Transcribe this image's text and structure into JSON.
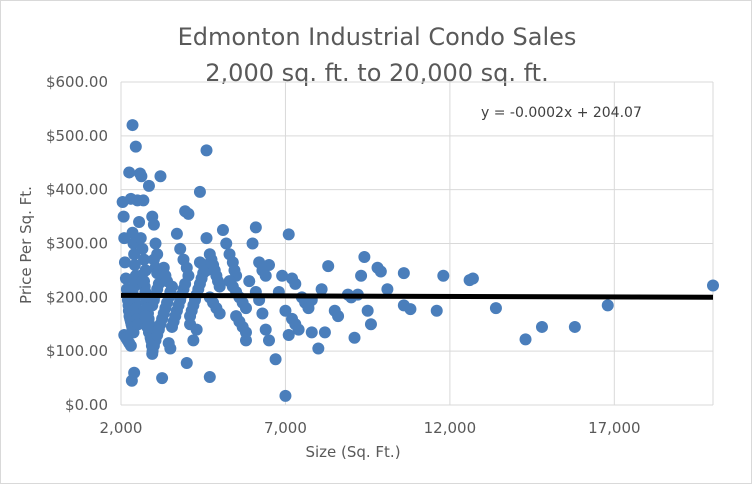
{
  "chart_data": {
    "type": "scatter",
    "title": "Edmonton Industrial Condo Sales",
    "subtitle": "2,000 sq. ft. to 20,000 sq. ft.",
    "xlabel": "Size (Sq. Ft.)",
    "ylabel": "Price Per Sq. Ft.",
    "xlim": [
      2000,
      20000
    ],
    "ylim": [
      0,
      600
    ],
    "x_ticks": [
      2000,
      7000,
      12000,
      17000
    ],
    "x_tick_labels": [
      "2,000",
      "7,000",
      "12,000",
      "17,000"
    ],
    "y_ticks": [
      0,
      100,
      200,
      300,
      400,
      500,
      600
    ],
    "y_tick_labels": [
      "$0.00",
      "$100.00",
      "$200.00",
      "$300.00",
      "$400.00",
      "$500.00",
      "$600.00"
    ],
    "grid": "vertical and horizontal major gridlines",
    "legend": "none",
    "marker_color": "#4a7ebb",
    "trendline": {
      "type": "linear",
      "slope": -0.0002,
      "intercept": 204.07,
      "color": "#000000",
      "equation_label": "y = -0.0002x + 204.07",
      "label_position": "top-right"
    },
    "points": [
      [
        2050,
        377
      ],
      [
        2080,
        350
      ],
      [
        2100,
        310
      ],
      [
        2120,
        265
      ],
      [
        2150,
        235
      ],
      [
        2180,
        215
      ],
      [
        2200,
        205
      ],
      [
        2210,
        195
      ],
      [
        2230,
        185
      ],
      [
        2240,
        175
      ],
      [
        2260,
        165
      ],
      [
        2280,
        160
      ],
      [
        2300,
        155
      ],
      [
        2320,
        150
      ],
      [
        2340,
        145
      ],
      [
        2360,
        140
      ],
      [
        2380,
        135
      ],
      [
        2100,
        130
      ],
      [
        2150,
        125
      ],
      [
        2200,
        120
      ],
      [
        2250,
        115
      ],
      [
        2300,
        110
      ],
      [
        2350,
        210
      ],
      [
        2400,
        220
      ],
      [
        2420,
        200
      ],
      [
        2440,
        190
      ],
      [
        2460,
        180
      ],
      [
        2480,
        170
      ],
      [
        2500,
        160
      ],
      [
        2520,
        150
      ],
      [
        2250,
        432
      ],
      [
        2300,
        383
      ],
      [
        2350,
        320
      ],
      [
        2380,
        300
      ],
      [
        2400,
        280
      ],
      [
        2420,
        260
      ],
      [
        2450,
        240
      ],
      [
        2480,
        230
      ],
      [
        2350,
        520
      ],
      [
        2450,
        480
      ],
      [
        2400,
        60
      ],
      [
        2330,
        45
      ],
      [
        2500,
        380
      ],
      [
        2550,
        340
      ],
      [
        2600,
        310
      ],
      [
        2650,
        290
      ],
      [
        2700,
        270
      ],
      [
        2750,
        250
      ],
      [
        2580,
        430
      ],
      [
        2620,
        425
      ],
      [
        2680,
        380
      ],
      [
        2700,
        230
      ],
      [
        2720,
        220
      ],
      [
        2740,
        210
      ],
      [
        2760,
        200
      ],
      [
        2780,
        190
      ],
      [
        2800,
        180
      ],
      [
        2820,
        170
      ],
      [
        2840,
        160
      ],
      [
        2860,
        150
      ],
      [
        2880,
        140
      ],
      [
        2900,
        130
      ],
      [
        2920,
        120
      ],
      [
        2940,
        110
      ],
      [
        2960,
        100
      ],
      [
        2600,
        240
      ],
      [
        2650,
        230
      ],
      [
        2700,
        175
      ],
      [
        2750,
        165
      ],
      [
        2800,
        145
      ],
      [
        2850,
        135
      ],
      [
        2900,
        125
      ],
      [
        2950,
        185
      ],
      [
        3000,
        195
      ],
      [
        3050,
        205
      ],
      [
        3100,
        215
      ],
      [
        3150,
        225
      ],
      [
        2850,
        407
      ],
      [
        2950,
        350
      ],
      [
        3000,
        335
      ],
      [
        3050,
        300
      ],
      [
        3100,
        280
      ],
      [
        3000,
        270
      ],
      [
        3050,
        255
      ],
      [
        3100,
        245
      ],
      [
        2950,
        95
      ],
      [
        3000,
        110
      ],
      [
        3050,
        120
      ],
      [
        3100,
        130
      ],
      [
        3150,
        140
      ],
      [
        3200,
        150
      ],
      [
        3250,
        160
      ],
      [
        3300,
        170
      ],
      [
        3350,
        180
      ],
      [
        3400,
        190
      ],
      [
        3450,
        200
      ],
      [
        3500,
        210
      ],
      [
        3550,
        220
      ],
      [
        3200,
        425
      ],
      [
        3250,
        50
      ],
      [
        3300,
        255
      ],
      [
        3350,
        240
      ],
      [
        3400,
        230
      ],
      [
        3450,
        115
      ],
      [
        3500,
        105
      ],
      [
        3550,
        145
      ],
      [
        3600,
        155
      ],
      [
        3650,
        165
      ],
      [
        3700,
        175
      ],
      [
        3750,
        185
      ],
      [
        3800,
        195
      ],
      [
        3850,
        205
      ],
      [
        3900,
        215
      ],
      [
        3950,
        225
      ],
      [
        3700,
        318
      ],
      [
        3800,
        290
      ],
      [
        3900,
        270
      ],
      [
        4000,
        255
      ],
      [
        4050,
        240
      ],
      [
        3950,
        360
      ],
      [
        4050,
        355
      ],
      [
        4100,
        165
      ],
      [
        4150,
        175
      ],
      [
        4200,
        185
      ],
      [
        4250,
        195
      ],
      [
        4300,
        205
      ],
      [
        4350,
        215
      ],
      [
        4400,
        225
      ],
      [
        4450,
        235
      ],
      [
        4500,
        245
      ],
      [
        4000,
        78
      ],
      [
        4100,
        150
      ],
      [
        4200,
        120
      ],
      [
        4300,
        140
      ],
      [
        4400,
        265
      ],
      [
        4500,
        260
      ],
      [
        4600,
        250
      ],
      [
        4400,
        396
      ],
      [
        4600,
        473
      ],
      [
        4600,
        310
      ],
      [
        4700,
        280
      ],
      [
        4750,
        270
      ],
      [
        4800,
        260
      ],
      [
        4850,
        250
      ],
      [
        4900,
        240
      ],
      [
        4950,
        230
      ],
      [
        5000,
        220
      ],
      [
        4700,
        200
      ],
      [
        4800,
        190
      ],
      [
        4900,
        180
      ],
      [
        5000,
        170
      ],
      [
        4700,
        52
      ],
      [
        5100,
        325
      ],
      [
        5200,
        300
      ],
      [
        5300,
        280
      ],
      [
        5400,
        265
      ],
      [
        5450,
        250
      ],
      [
        5500,
        240
      ],
      [
        5300,
        230
      ],
      [
        5400,
        220
      ],
      [
        5500,
        210
      ],
      [
        5600,
        200
      ],
      [
        5700,
        190
      ],
      [
        5800,
        180
      ],
      [
        5500,
        165
      ],
      [
        5600,
        155
      ],
      [
        5700,
        145
      ],
      [
        5800,
        135
      ],
      [
        5800,
        120
      ],
      [
        5900,
        230
      ],
      [
        6000,
        300
      ],
      [
        6100,
        330
      ],
      [
        6200,
        265
      ],
      [
        6300,
        250
      ],
      [
        6400,
        240
      ],
      [
        6100,
        210
      ],
      [
        6200,
        195
      ],
      [
        6300,
        170
      ],
      [
        6400,
        140
      ],
      [
        6500,
        120
      ],
      [
        6500,
        260
      ],
      [
        6700,
        85
      ],
      [
        6800,
        210
      ],
      [
        6900,
        240
      ],
      [
        7000,
        175
      ],
      [
        7100,
        130
      ],
      [
        7000,
        17
      ],
      [
        7100,
        317
      ],
      [
        7200,
        235
      ],
      [
        7300,
        225
      ],
      [
        7200,
        160
      ],
      [
        7300,
        150
      ],
      [
        7400,
        140
      ],
      [
        7500,
        200
      ],
      [
        7600,
        190
      ],
      [
        7700,
        180
      ],
      [
        7800,
        135
      ],
      [
        7800,
        195
      ],
      [
        8000,
        105
      ],
      [
        8100,
        215
      ],
      [
        8200,
        135
      ],
      [
        8300,
        258
      ],
      [
        8500,
        175
      ],
      [
        8600,
        165
      ],
      [
        8900,
        205
      ],
      [
        9000,
        200
      ],
      [
        9100,
        125
      ],
      [
        9200,
        205
      ],
      [
        9300,
        240
      ],
      [
        9400,
        275
      ],
      [
        9500,
        175
      ],
      [
        9600,
        150
      ],
      [
        9800,
        255
      ],
      [
        9900,
        248
      ],
      [
        10100,
        215
      ],
      [
        10600,
        185
      ],
      [
        10600,
        245
      ],
      [
        10800,
        178
      ],
      [
        11600,
        175
      ],
      [
        11800,
        240
      ],
      [
        12600,
        232
      ],
      [
        12700,
        235
      ],
      [
        13400,
        180
      ],
      [
        14300,
        122
      ],
      [
        14800,
        145
      ],
      [
        15800,
        145
      ],
      [
        16800,
        185
      ],
      [
        20000,
        222
      ]
    ]
  }
}
